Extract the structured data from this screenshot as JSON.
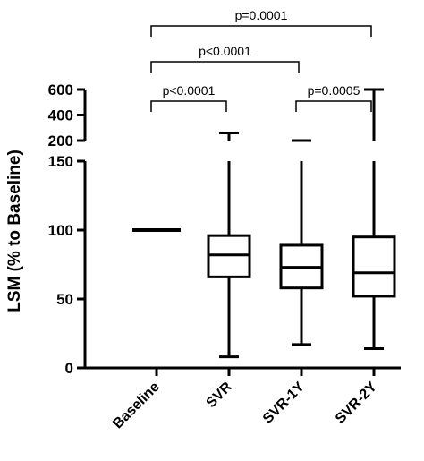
{
  "chart_data": {
    "type": "box",
    "title": "",
    "xlabel": "",
    "ylabel": "LSM (% to Baseline)",
    "y_axis": {
      "broken": true,
      "lower_range": [
        0,
        150
      ],
      "upper_range": [
        200,
        600
      ],
      "lower_ticks": [
        0,
        50,
        100,
        150
      ],
      "upper_ticks": [
        200,
        400,
        600
      ]
    },
    "categories": [
      "Baseline",
      "SVR",
      "SVR-1Y",
      "SVR-2Y"
    ],
    "boxes": [
      {
        "category": "Baseline",
        "min": 100,
        "q1": 100,
        "median": 100,
        "q3": 100,
        "max": 100
      },
      {
        "category": "SVR",
        "min": 8,
        "q1": 66,
        "median": 82,
        "q3": 96,
        "max": 260
      },
      {
        "category": "SVR-1Y",
        "min": 17,
        "q1": 58,
        "median": 73,
        "q3": 89,
        "max": 200
      },
      {
        "category": "SVR-2Y",
        "min": 14,
        "q1": 52,
        "median": 69,
        "q3": 95,
        "max": 600
      }
    ],
    "comparisons": [
      {
        "from": "SVR-1Y",
        "to": "SVR-2Y",
        "label": "p=0.0005"
      },
      {
        "from": "Baseline",
        "to": "SVR",
        "label": "p<0.0001"
      },
      {
        "from": "Baseline",
        "to": "SVR-1Y",
        "label": "p<0.0001"
      },
      {
        "from": "Baseline",
        "to": "SVR-2Y",
        "label": "p=0.0001"
      }
    ],
    "grid": false
  }
}
